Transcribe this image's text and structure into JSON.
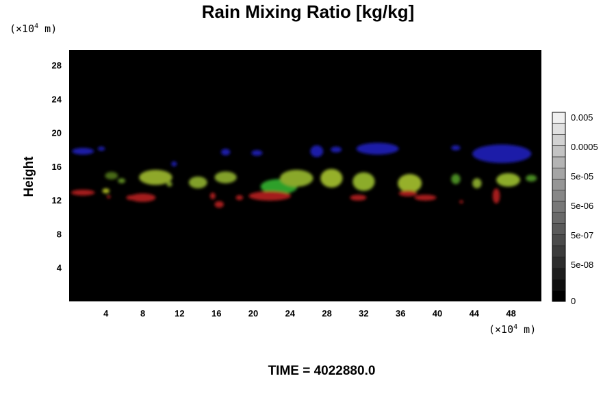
{
  "chart_data": {
    "type": "heatmap",
    "title": "Rain Mixing Ratio [kg/kg]",
    "ylabel": "Height",
    "y_unit": {
      "prefix": "(×10",
      "exp": "4",
      "suffix": " m)"
    },
    "x_unit": {
      "prefix": "(×10",
      "exp": "4",
      "suffix": " m)"
    },
    "time_label": "TIME = 4022880.0",
    "xlim": [
      0,
      51.3
    ],
    "ylim": [
      0,
      29.8
    ],
    "x_ticks": [
      4,
      8,
      12,
      16,
      20,
      24,
      28,
      32,
      36,
      40,
      44,
      48
    ],
    "x_tick_labels": [
      "4",
      "8",
      "12",
      "16",
      "20",
      "24",
      "28",
      "32",
      "36",
      "40",
      "44",
      "48"
    ],
    "y_ticks": [
      4,
      8,
      12,
      16,
      20,
      24,
      28
    ],
    "y_tick_labels": [
      "4",
      "8",
      "12",
      "16",
      "20",
      "24",
      "28"
    ],
    "background_color": "#000000",
    "colorbar": {
      "labels": [
        "0",
        "5e-08",
        "5e-07",
        "5e-06",
        "5e-05",
        "0.0005",
        "0.005"
      ],
      "steps": 17
    },
    "features": [
      {
        "color": "#1c1ca8",
        "x": 1.5,
        "y": 17.8,
        "rx": 1.2,
        "ry": 0.4
      },
      {
        "color": "#1c1ca8",
        "x": 3.5,
        "y": 18.1,
        "rx": 0.4,
        "ry": 0.25
      },
      {
        "color": "#1c1ca8",
        "x": 11.4,
        "y": 16.3,
        "rx": 0.3,
        "ry": 0.3
      },
      {
        "color": "#1c1ca8",
        "x": 17.0,
        "y": 17.7,
        "rx": 0.5,
        "ry": 0.4
      },
      {
        "color": "#1c1ca8",
        "x": 20.4,
        "y": 17.6,
        "rx": 0.6,
        "ry": 0.35
      },
      {
        "color": "#1c1ca8",
        "x": 26.9,
        "y": 17.8,
        "rx": 0.7,
        "ry": 0.7
      },
      {
        "color": "#1c1ca8",
        "x": 29.0,
        "y": 18.0,
        "rx": 0.6,
        "ry": 0.35
      },
      {
        "color": "#1c1ca8",
        "x": 33.5,
        "y": 18.1,
        "rx": 2.3,
        "ry": 0.7
      },
      {
        "color": "#1c1ca8",
        "x": 42.0,
        "y": 18.2,
        "rx": 0.5,
        "ry": 0.3
      },
      {
        "color": "#1c1ca8",
        "x": 47.0,
        "y": 17.5,
        "rx": 3.2,
        "ry": 1.1
      },
      {
        "color": "#4a6a18",
        "x": 4.6,
        "y": 14.9,
        "rx": 0.7,
        "ry": 0.45
      },
      {
        "color": "#5e8a22",
        "x": 5.7,
        "y": 14.3,
        "rx": 0.4,
        "ry": 0.3
      },
      {
        "color": "#8fa82a",
        "x": 9.4,
        "y": 14.7,
        "rx": 1.8,
        "ry": 0.9
      },
      {
        "color": "#82a02a",
        "x": 14.0,
        "y": 14.1,
        "rx": 1.0,
        "ry": 0.7
      },
      {
        "color": "#82a02a",
        "x": 17.0,
        "y": 14.7,
        "rx": 1.2,
        "ry": 0.7
      },
      {
        "color": "#7a9a26",
        "x": 10.9,
        "y": 13.9,
        "rx": 0.3,
        "ry": 0.3
      },
      {
        "color": "#2da02a",
        "x": 22.8,
        "y": 13.6,
        "rx": 2.0,
        "ry": 0.9
      },
      {
        "color": "#8aa82c",
        "x": 24.7,
        "y": 14.6,
        "rx": 1.8,
        "ry": 1.0
      },
      {
        "color": "#96b02c",
        "x": 28.5,
        "y": 14.6,
        "rx": 1.2,
        "ry": 1.1
      },
      {
        "color": "#8cac2a",
        "x": 32.0,
        "y": 14.2,
        "rx": 1.2,
        "ry": 1.1
      },
      {
        "color": "#96b02c",
        "x": 37.0,
        "y": 14.0,
        "rx": 1.3,
        "ry": 1.1
      },
      {
        "color": "#4a8a22",
        "x": 42.0,
        "y": 14.5,
        "rx": 0.5,
        "ry": 0.6
      },
      {
        "color": "#82a02a",
        "x": 44.3,
        "y": 14.0,
        "rx": 0.5,
        "ry": 0.6
      },
      {
        "color": "#8cac2a",
        "x": 47.7,
        "y": 14.4,
        "rx": 1.3,
        "ry": 0.8
      },
      {
        "color": "#4a8a22",
        "x": 50.2,
        "y": 14.6,
        "rx": 0.6,
        "ry": 0.4
      },
      {
        "color": "#a6b020",
        "x": 4.0,
        "y": 13.1,
        "rx": 0.4,
        "ry": 0.3
      },
      {
        "color": "#a51a1a",
        "x": 1.5,
        "y": 12.9,
        "rx": 1.3,
        "ry": 0.35
      },
      {
        "color": "#a51a1a",
        "x": 4.3,
        "y": 12.4,
        "rx": 0.2,
        "ry": 0.2
      },
      {
        "color": "#a51a1a",
        "x": 6.8,
        "y": 12.3,
        "rx": 0.6,
        "ry": 0.3
      },
      {
        "color": "#a51a1a",
        "x": 8.0,
        "y": 12.3,
        "rx": 1.4,
        "ry": 0.5
      },
      {
        "color": "#a51a1a",
        "x": 15.6,
        "y": 12.5,
        "rx": 0.3,
        "ry": 0.4
      },
      {
        "color": "#a51a1a",
        "x": 16.3,
        "y": 11.5,
        "rx": 0.5,
        "ry": 0.4
      },
      {
        "color": "#a51a1a",
        "x": 18.5,
        "y": 12.3,
        "rx": 0.4,
        "ry": 0.3
      },
      {
        "color": "#a51a1a",
        "x": 21.8,
        "y": 12.5,
        "rx": 2.3,
        "ry": 0.55
      },
      {
        "color": "#a51a1a",
        "x": 31.4,
        "y": 12.3,
        "rx": 0.9,
        "ry": 0.35
      },
      {
        "color": "#a51a1a",
        "x": 36.8,
        "y": 12.8,
        "rx": 1.0,
        "ry": 0.35
      },
      {
        "color": "#a51a1a",
        "x": 38.7,
        "y": 12.3,
        "rx": 1.2,
        "ry": 0.35
      },
      {
        "color": "#a51a1a",
        "x": 42.6,
        "y": 11.8,
        "rx": 0.2,
        "ry": 0.2
      },
      {
        "color": "#a51a1a",
        "x": 46.4,
        "y": 12.5,
        "rx": 0.4,
        "ry": 0.9
      }
    ]
  }
}
